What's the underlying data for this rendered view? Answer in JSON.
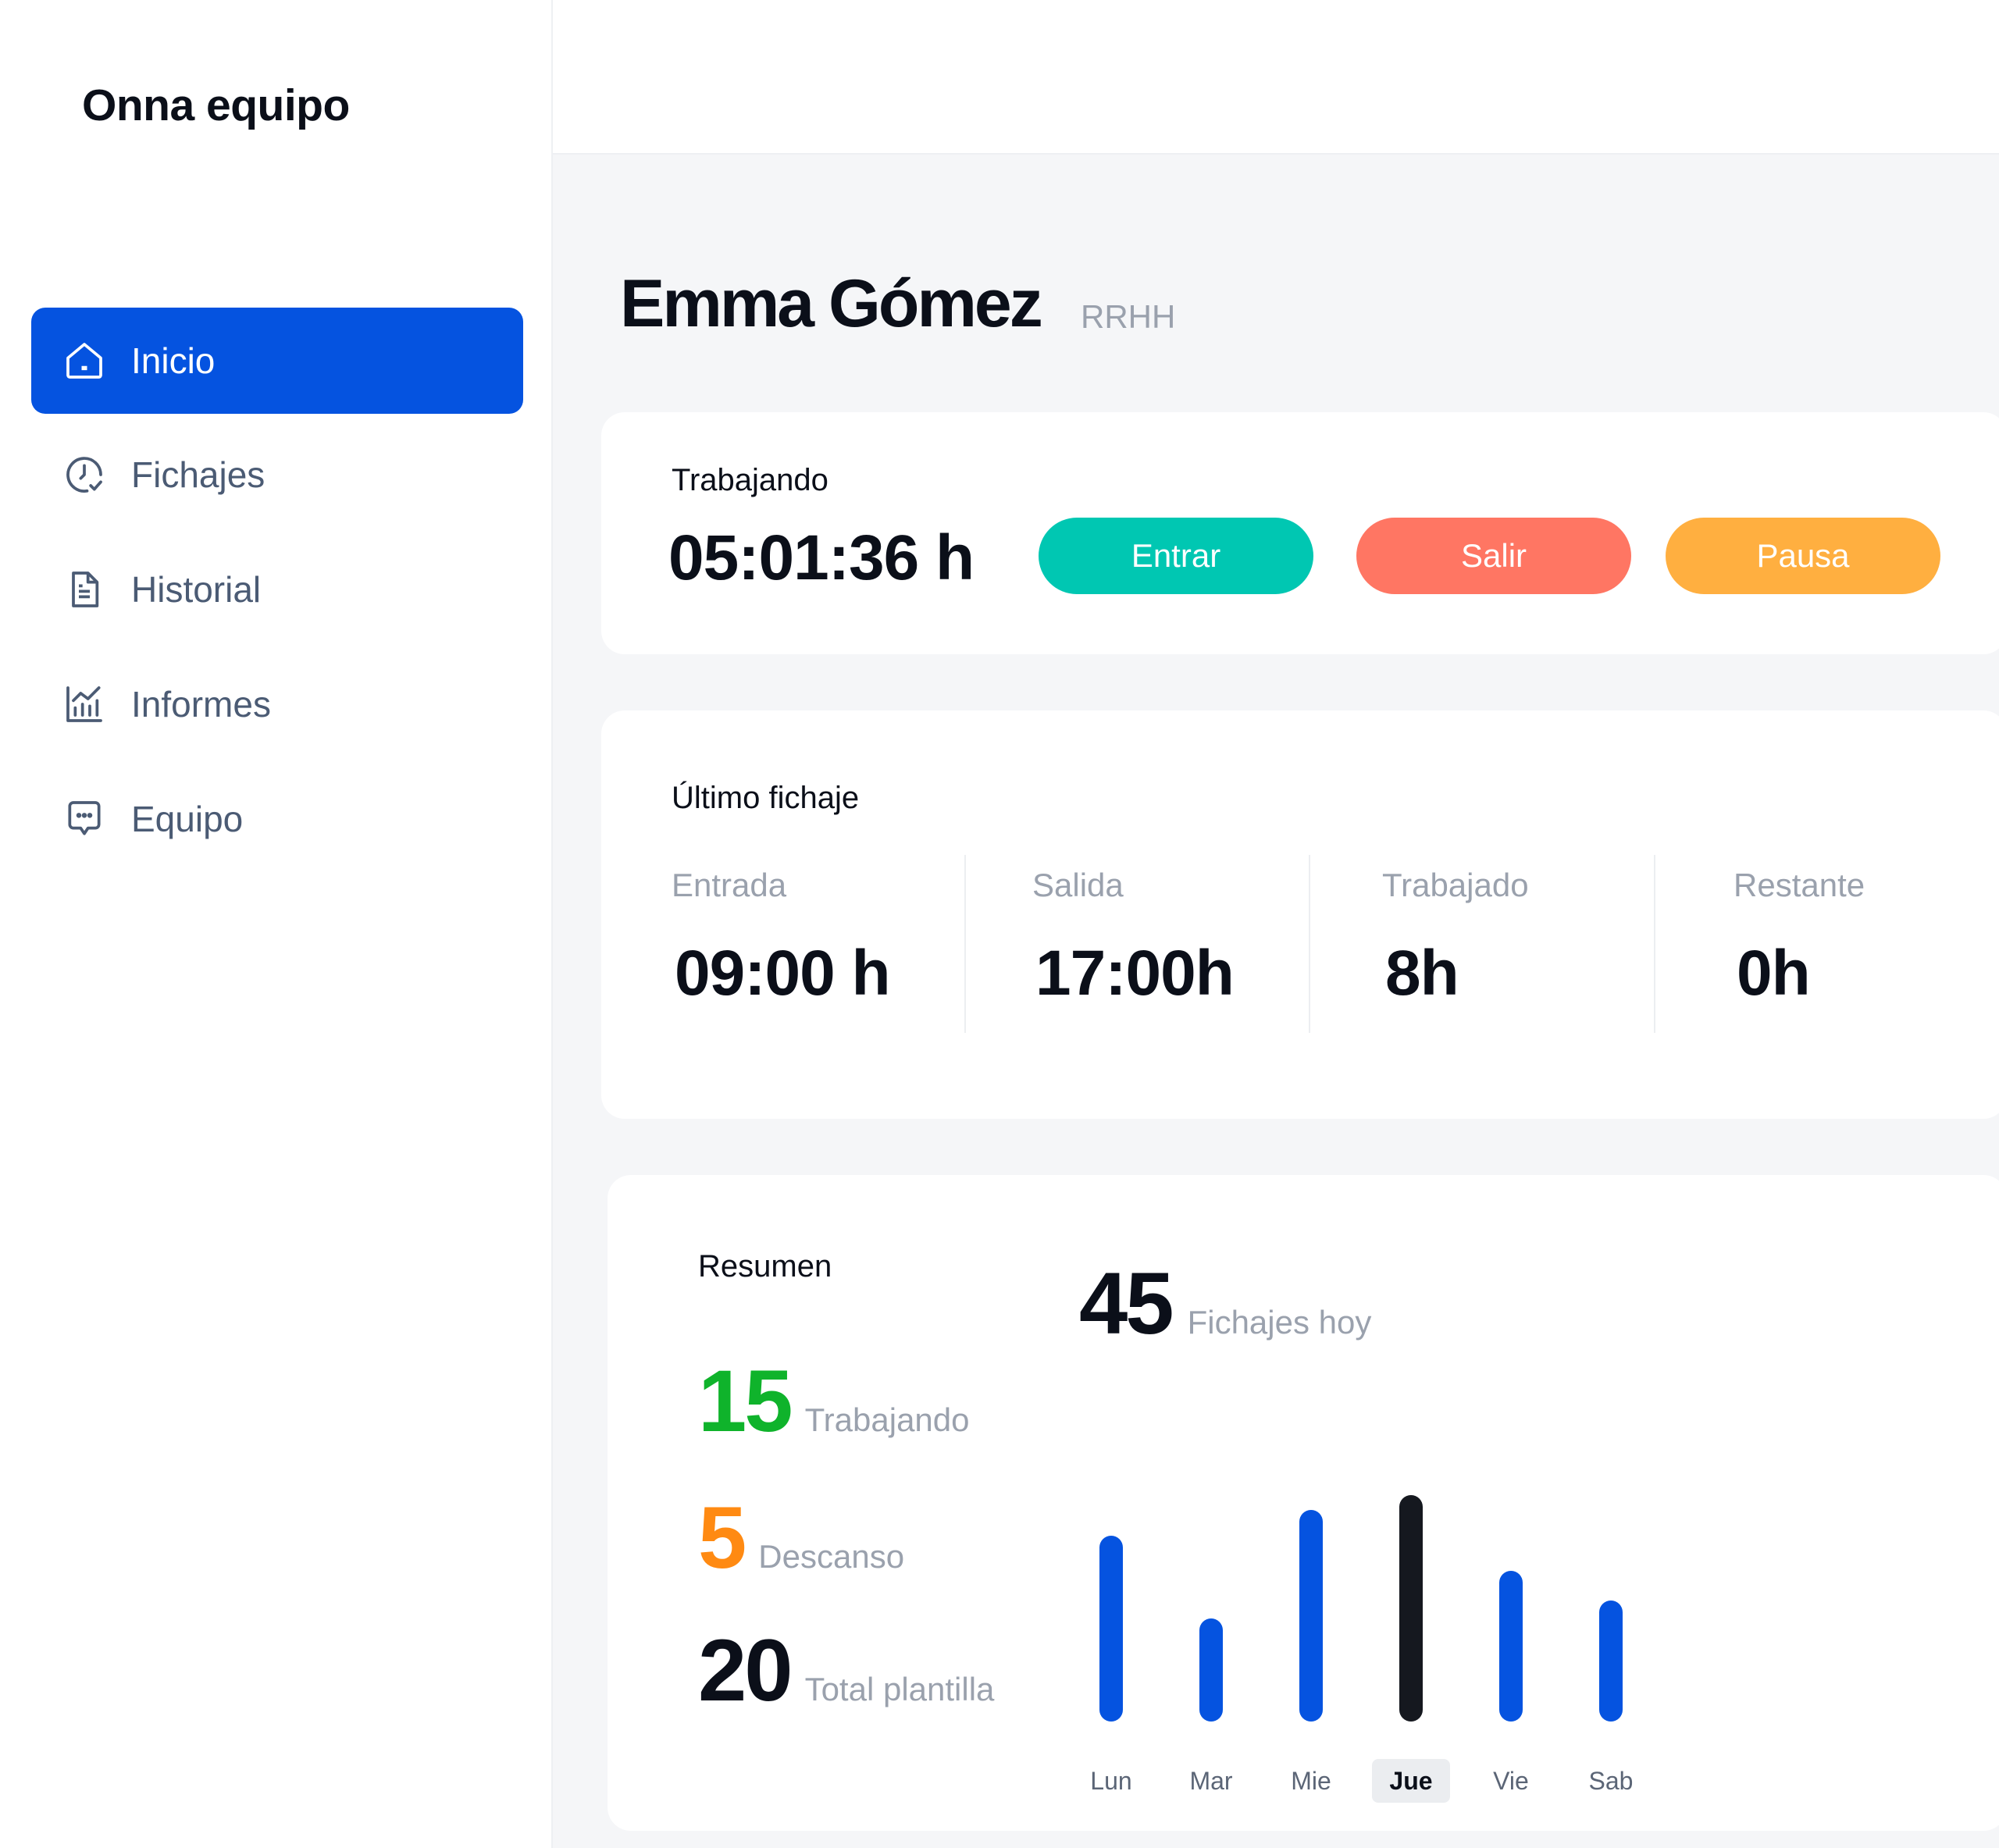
{
  "app": {
    "title": "Onna equipo"
  },
  "sidebar": {
    "items": [
      {
        "label": "Inicio",
        "icon": "home-icon",
        "active": true
      },
      {
        "label": "Fichajes",
        "icon": "clock-check-icon",
        "active": false
      },
      {
        "label": "Historial",
        "icon": "document-icon",
        "active": false
      },
      {
        "label": "Informes",
        "icon": "chart-icon",
        "active": false
      },
      {
        "label": "Equipo",
        "icon": "chat-icon",
        "active": false
      }
    ]
  },
  "user": {
    "name": "Emma Gómez",
    "department": "RRHH"
  },
  "tracker": {
    "status": "Trabajando",
    "time": "05:01:36 h",
    "buttons": {
      "enter": "Entrar",
      "exit": "Salir",
      "pause": "Pausa"
    }
  },
  "last_entry": {
    "title": "Último fichaje",
    "stats": [
      {
        "label": "Entrada",
        "value": "09:00 h"
      },
      {
        "label": "Salida",
        "value": "17:00h"
      },
      {
        "label": "Trabajado",
        "value": "8h"
      },
      {
        "label": "Restante",
        "value": "0h"
      }
    ]
  },
  "summary": {
    "title": "Resumen",
    "rows": [
      {
        "value": "15",
        "label": "Trabajando",
        "color": "#0fb32b"
      },
      {
        "value": "5",
        "label": "Descanso",
        "color": "#ff8a12"
      },
      {
        "value": "20",
        "label": "Total plantilla",
        "color": "#0b0f19"
      }
    ],
    "fichajes_today": {
      "value": "45",
      "label": "Fichajes hoy"
    }
  },
  "colors": {
    "accent": "#0553e0",
    "highlight_bar": "#15181f"
  },
  "chart_data": {
    "type": "bar",
    "categories": [
      "Lun",
      "Mar",
      "Mie",
      "Jue",
      "Vie",
      "Sab"
    ],
    "values": [
      7.4,
      4.1,
      8.4,
      9,
      6,
      4.8
    ],
    "highlight": "Jue",
    "ylim": [
      0,
      9
    ],
    "grid": false
  }
}
